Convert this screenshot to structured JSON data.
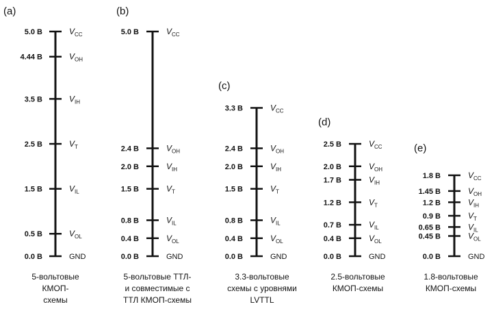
{
  "panels": [
    {
      "id": "a",
      "label": "(a)",
      "caption": [
        "5-вольтовые",
        "КМОП-",
        "схемы"
      ],
      "levels": [
        {
          "value": "5.0 В",
          "v": 5.0,
          "signal": "V",
          "sub": "CC"
        },
        {
          "value": "4.44 В",
          "v": 4.44,
          "signal": "V",
          "sub": "OH"
        },
        {
          "value": "3.5 В",
          "v": 3.5,
          "signal": "V",
          "sub": "IH"
        },
        {
          "value": "2.5 В",
          "v": 2.5,
          "signal": "V",
          "sub": "T"
        },
        {
          "value": "1.5 В",
          "v": 1.5,
          "signal": "V",
          "sub": "IL"
        },
        {
          "value": "0.5 В",
          "v": 0.5,
          "signal": "V",
          "sub": "OL"
        },
        {
          "value": "0.0 В",
          "v": 0.0,
          "signal": "GND",
          "sub": ""
        }
      ]
    },
    {
      "id": "b",
      "label": "(b)",
      "caption": [
        "5-вольтовые ТТЛ-",
        "и совместимые с",
        "ТТЛ КМОП-схемы"
      ],
      "levels": [
        {
          "value": "5.0 В",
          "v": 5.0,
          "signal": "V",
          "sub": "CC"
        },
        {
          "value": "2.4 В",
          "v": 2.4,
          "signal": "V",
          "sub": "OH"
        },
        {
          "value": "2.0 В",
          "v": 2.0,
          "signal": "V",
          "sub": "IH"
        },
        {
          "value": "1.5 В",
          "v": 1.5,
          "signal": "V",
          "sub": "T"
        },
        {
          "value": "0.8 В",
          "v": 0.8,
          "signal": "V",
          "sub": "IL"
        },
        {
          "value": "0.4 В",
          "v": 0.4,
          "signal": "V",
          "sub": "OL"
        },
        {
          "value": "0.0 В",
          "v": 0.0,
          "signal": "GND",
          "sub": ""
        }
      ]
    },
    {
      "id": "c",
      "label": "(c)",
      "caption": [
        "3.3-вольтовые",
        "схемы с уровнями",
        "LVTTL"
      ],
      "levels": [
        {
          "value": "3.3 В",
          "v": 3.3,
          "signal": "V",
          "sub": "CC"
        },
        {
          "value": "2.4 В",
          "v": 2.4,
          "signal": "V",
          "sub": "OH"
        },
        {
          "value": "2.0 В",
          "v": 2.0,
          "signal": "V",
          "sub": "IH"
        },
        {
          "value": "1.5 В",
          "v": 1.5,
          "signal": "V",
          "sub": "T"
        },
        {
          "value": "0.8 В",
          "v": 0.8,
          "signal": "V",
          "sub": "IL"
        },
        {
          "value": "0.4 В",
          "v": 0.4,
          "signal": "V",
          "sub": "OL"
        },
        {
          "value": "0.0 В",
          "v": 0.0,
          "signal": "GND",
          "sub": ""
        }
      ]
    },
    {
      "id": "d",
      "label": "(d)",
      "caption": [
        "2.5-вольтовые",
        "КМОП-схемы"
      ],
      "levels": [
        {
          "value": "2.5 В",
          "v": 2.5,
          "signal": "V",
          "sub": "CC"
        },
        {
          "value": "2.0 В",
          "v": 2.0,
          "signal": "V",
          "sub": "OH"
        },
        {
          "value": "1.7 В",
          "v": 1.7,
          "signal": "V",
          "sub": "IH"
        },
        {
          "value": "1.2 В",
          "v": 1.2,
          "signal": "V",
          "sub": "T"
        },
        {
          "value": "0.7 В",
          "v": 0.7,
          "signal": "V",
          "sub": "IL"
        },
        {
          "value": "0.4 В",
          "v": 0.4,
          "signal": "V",
          "sub": "OL"
        },
        {
          "value": "0.0 В",
          "v": 0.0,
          "signal": "GND",
          "sub": ""
        }
      ]
    },
    {
      "id": "e",
      "label": "(e)",
      "caption": [
        "1.8-вольтовые",
        "КМОП-схемы"
      ],
      "levels": [
        {
          "value": "1.8 В",
          "v": 1.8,
          "signal": "V",
          "sub": "CC"
        },
        {
          "value": "1.45 В",
          "v": 1.45,
          "signal": "V",
          "sub": "OH"
        },
        {
          "value": "1.2 В",
          "v": 1.2,
          "signal": "V",
          "sub": "IH"
        },
        {
          "value": "0.9 В",
          "v": 0.9,
          "signal": "V",
          "sub": "T"
        },
        {
          "value": "0.65 В",
          "v": 0.65,
          "signal": "V",
          "sub": "IL"
        },
        {
          "value": "0.45 В",
          "v": 0.45,
          "signal": "V",
          "sub": "OL"
        },
        {
          "value": "0.0 В",
          "v": 0.0,
          "signal": "GND",
          "sub": ""
        }
      ]
    }
  ]
}
